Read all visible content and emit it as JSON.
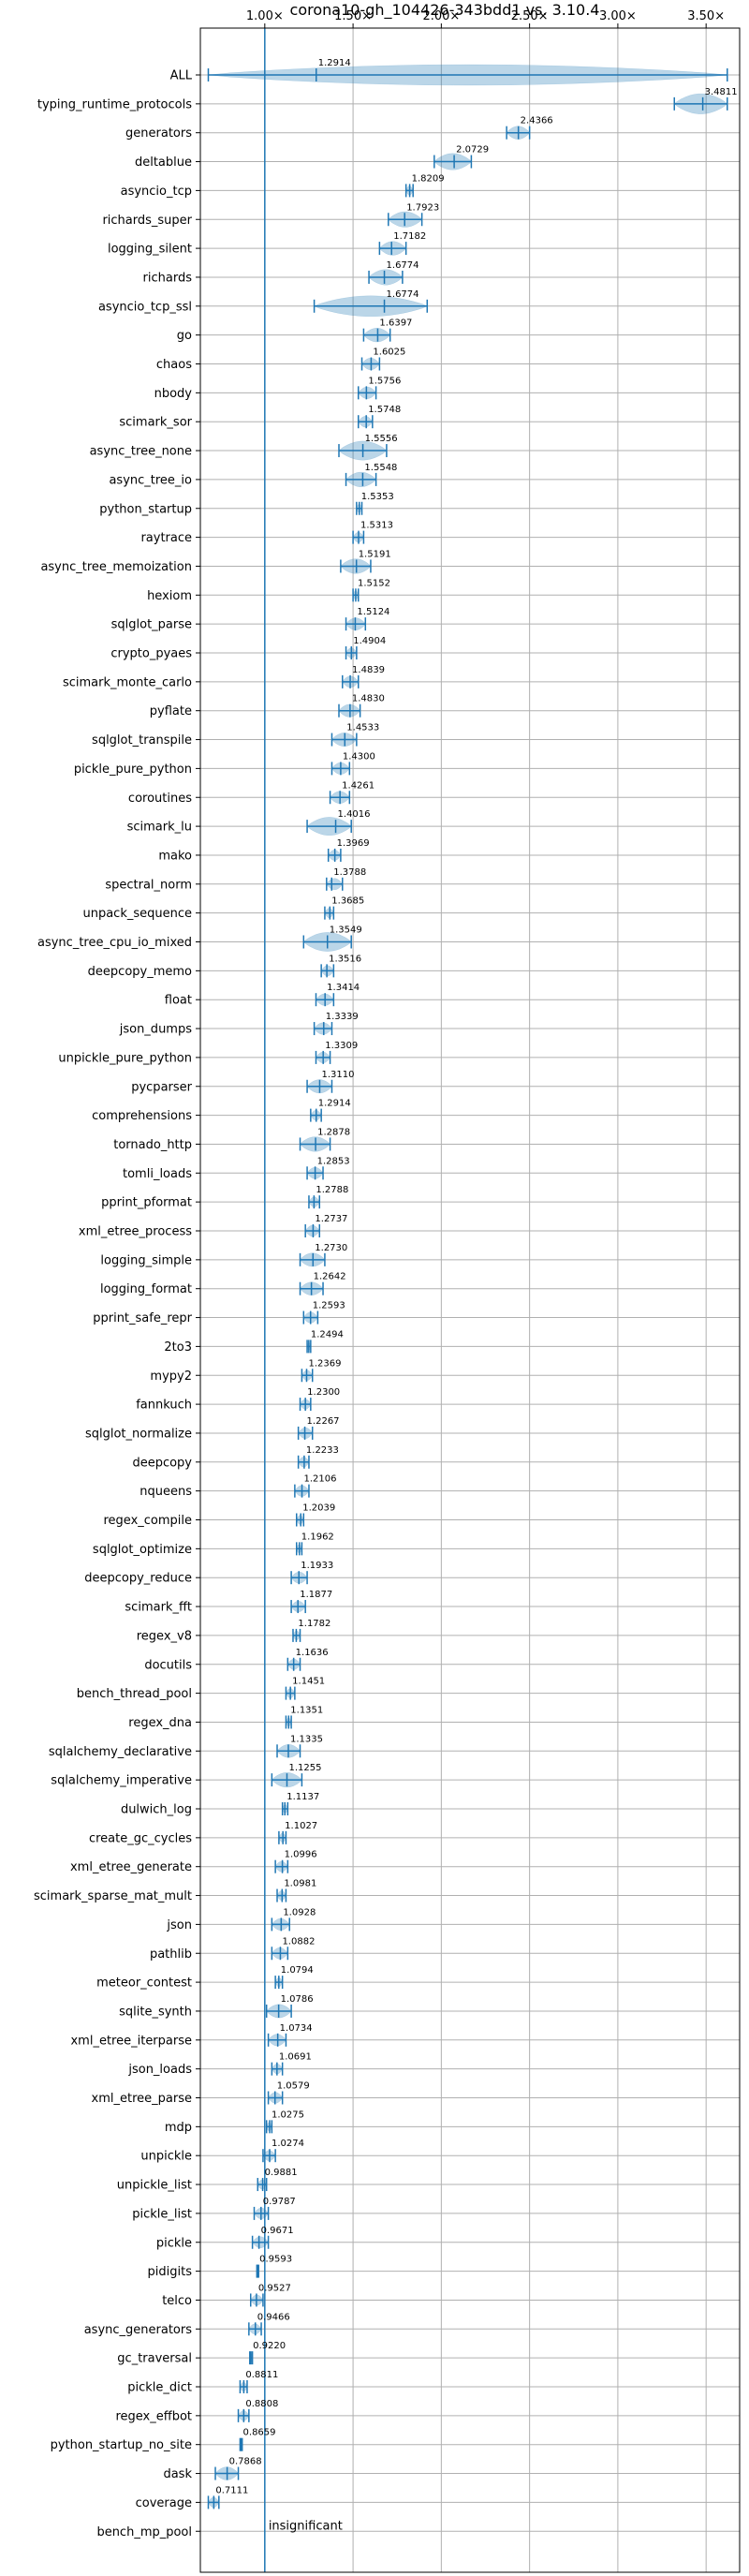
{
  "chart_data": {
    "type": "violin",
    "title": "corona10-gh_104426-343bdd1 vs. 3.10.4",
    "xlabel": "",
    "ylabel": "",
    "xlim": [
      0.635,
      3.69
    ],
    "x_ticks": [
      {
        "value": 1.0,
        "label": "1.00×"
      },
      {
        "value": 1.5,
        "label": "1.50×"
      },
      {
        "value": 2.0,
        "label": "2.00×"
      },
      {
        "value": 2.5,
        "label": "2.50×"
      },
      {
        "value": 3.0,
        "label": "3.00×"
      },
      {
        "value": 3.5,
        "label": "3.50×"
      }
    ],
    "x_ticks_position": "top",
    "grid": true,
    "baseline": 1.0,
    "colors": {
      "series": "#1f77b4",
      "grid": "#b0b0b0"
    },
    "benchmarks": [
      {
        "name": "ALL",
        "value": 1.2914,
        "label": "1.2914",
        "lo": 0.68,
        "hi": 3.62
      },
      {
        "name": "typing_runtime_protocols",
        "value": 3.4811,
        "label": "3.4811",
        "lo": 3.32,
        "hi": 3.62
      },
      {
        "name": "generators",
        "value": 2.4366,
        "label": "2.4366",
        "lo": 2.37,
        "hi": 2.5
      },
      {
        "name": "deltablue",
        "value": 2.0729,
        "label": "2.0729",
        "lo": 1.96,
        "hi": 2.17
      },
      {
        "name": "asyncio_tcp",
        "value": 1.8209,
        "label": "1.8209",
        "lo": 1.8,
        "hi": 1.84
      },
      {
        "name": "richards_super",
        "value": 1.7923,
        "label": "1.7923",
        "lo": 1.7,
        "hi": 1.89
      },
      {
        "name": "logging_silent",
        "value": 1.7182,
        "label": "1.7182",
        "lo": 1.65,
        "hi": 1.8
      },
      {
        "name": "richards",
        "value": 1.6774,
        "label": "1.6774",
        "lo": 1.59,
        "hi": 1.78
      },
      {
        "name": "asyncio_tcp_ssl",
        "value": 1.6774,
        "label": "1.6774",
        "lo": 1.28,
        "hi": 1.92
      },
      {
        "name": "go",
        "value": 1.6397,
        "label": "1.6397",
        "lo": 1.56,
        "hi": 1.71
      },
      {
        "name": "chaos",
        "value": 1.6025,
        "label": "1.6025",
        "lo": 1.55,
        "hi": 1.65
      },
      {
        "name": "nbody",
        "value": 1.5756,
        "label": "1.5756",
        "lo": 1.53,
        "hi": 1.63
      },
      {
        "name": "scimark_sor",
        "value": 1.5748,
        "label": "1.5748",
        "lo": 1.53,
        "hi": 1.61
      },
      {
        "name": "async_tree_none",
        "value": 1.5556,
        "label": "1.5556",
        "lo": 1.42,
        "hi": 1.69
      },
      {
        "name": "async_tree_io",
        "value": 1.5548,
        "label": "1.5548",
        "lo": 1.46,
        "hi": 1.63
      },
      {
        "name": "python_startup",
        "value": 1.5353,
        "label": "1.5353",
        "lo": 1.52,
        "hi": 1.55
      },
      {
        "name": "raytrace",
        "value": 1.5313,
        "label": "1.5313",
        "lo": 1.5,
        "hi": 1.56
      },
      {
        "name": "async_tree_memoization",
        "value": 1.5191,
        "label": "1.5191",
        "lo": 1.43,
        "hi": 1.6
      },
      {
        "name": "hexiom",
        "value": 1.5152,
        "label": "1.5152",
        "lo": 1.5,
        "hi": 1.53
      },
      {
        "name": "sqlglot_parse",
        "value": 1.5124,
        "label": "1.5124",
        "lo": 1.46,
        "hi": 1.57
      },
      {
        "name": "crypto_pyaes",
        "value": 1.4904,
        "label": "1.4904",
        "lo": 1.46,
        "hi": 1.52
      },
      {
        "name": "scimark_monte_carlo",
        "value": 1.4839,
        "label": "1.4839",
        "lo": 1.44,
        "hi": 1.53
      },
      {
        "name": "pyflate",
        "value": 1.483,
        "label": "1.4830",
        "lo": 1.42,
        "hi": 1.54
      },
      {
        "name": "sqlglot_transpile",
        "value": 1.4533,
        "label": "1.4533",
        "lo": 1.38,
        "hi": 1.52
      },
      {
        "name": "pickle_pure_python",
        "value": 1.43,
        "label": "1.4300",
        "lo": 1.38,
        "hi": 1.48
      },
      {
        "name": "coroutines",
        "value": 1.4261,
        "label": "1.4261",
        "lo": 1.37,
        "hi": 1.48
      },
      {
        "name": "scimark_lu",
        "value": 1.4016,
        "label": "1.4016",
        "lo": 1.24,
        "hi": 1.49
      },
      {
        "name": "mako",
        "value": 1.3969,
        "label": "1.3969",
        "lo": 1.36,
        "hi": 1.43
      },
      {
        "name": "spectral_norm",
        "value": 1.3788,
        "label": "1.3788",
        "lo": 1.35,
        "hi": 1.44
      },
      {
        "name": "unpack_sequence",
        "value": 1.3685,
        "label": "1.3685",
        "lo": 1.34,
        "hi": 1.39
      },
      {
        "name": "async_tree_cpu_io_mixed",
        "value": 1.3549,
        "label": "1.3549",
        "lo": 1.22,
        "hi": 1.49
      },
      {
        "name": "deepcopy_memo",
        "value": 1.3516,
        "label": "1.3516",
        "lo": 1.32,
        "hi": 1.39
      },
      {
        "name": "float",
        "value": 1.3414,
        "label": "1.3414",
        "lo": 1.29,
        "hi": 1.39
      },
      {
        "name": "json_dumps",
        "value": 1.3339,
        "label": "1.3339",
        "lo": 1.28,
        "hi": 1.38
      },
      {
        "name": "unpickle_pure_python",
        "value": 1.3309,
        "label": "1.3309",
        "lo": 1.29,
        "hi": 1.37
      },
      {
        "name": "pycparser",
        "value": 1.311,
        "label": "1.3110",
        "lo": 1.24,
        "hi": 1.38
      },
      {
        "name": "comprehensions",
        "value": 1.2914,
        "label": "1.2914",
        "lo": 1.26,
        "hi": 1.32
      },
      {
        "name": "tornado_http",
        "value": 1.2878,
        "label": "1.2878",
        "lo": 1.2,
        "hi": 1.37
      },
      {
        "name": "tomli_loads",
        "value": 1.2853,
        "label": "1.2853",
        "lo": 1.24,
        "hi": 1.33
      },
      {
        "name": "pprint_pformat",
        "value": 1.2788,
        "label": "1.2788",
        "lo": 1.25,
        "hi": 1.31
      },
      {
        "name": "xml_etree_process",
        "value": 1.2737,
        "label": "1.2737",
        "lo": 1.23,
        "hi": 1.31
      },
      {
        "name": "logging_simple",
        "value": 1.273,
        "label": "1.2730",
        "lo": 1.2,
        "hi": 1.34
      },
      {
        "name": "logging_format",
        "value": 1.2642,
        "label": "1.2642",
        "lo": 1.2,
        "hi": 1.33
      },
      {
        "name": "pprint_safe_repr",
        "value": 1.2593,
        "label": "1.2593",
        "lo": 1.22,
        "hi": 1.3
      },
      {
        "name": "2to3",
        "value": 1.2494,
        "label": "1.2494",
        "lo": 1.24,
        "hi": 1.26
      },
      {
        "name": "mypy2",
        "value": 1.2369,
        "label": "1.2369",
        "lo": 1.21,
        "hi": 1.27
      },
      {
        "name": "fannkuch",
        "value": 1.23,
        "label": "1.2300",
        "lo": 1.2,
        "hi": 1.26
      },
      {
        "name": "sqlglot_normalize",
        "value": 1.2267,
        "label": "1.2267",
        "lo": 1.19,
        "hi": 1.27
      },
      {
        "name": "deepcopy",
        "value": 1.2233,
        "label": "1.2233",
        "lo": 1.19,
        "hi": 1.25
      },
      {
        "name": "nqueens",
        "value": 1.2106,
        "label": "1.2106",
        "lo": 1.17,
        "hi": 1.25
      },
      {
        "name": "regex_compile",
        "value": 1.2039,
        "label": "1.2039",
        "lo": 1.18,
        "hi": 1.22
      },
      {
        "name": "sqlglot_optimize",
        "value": 1.1962,
        "label": "1.1962",
        "lo": 1.18,
        "hi": 1.21
      },
      {
        "name": "deepcopy_reduce",
        "value": 1.1933,
        "label": "1.1933",
        "lo": 1.15,
        "hi": 1.24
      },
      {
        "name": "scimark_fft",
        "value": 1.1877,
        "label": "1.1877",
        "lo": 1.15,
        "hi": 1.23
      },
      {
        "name": "regex_v8",
        "value": 1.1782,
        "label": "1.1782",
        "lo": 1.16,
        "hi": 1.2
      },
      {
        "name": "docutils",
        "value": 1.1636,
        "label": "1.1636",
        "lo": 1.13,
        "hi": 1.2
      },
      {
        "name": "bench_thread_pool",
        "value": 1.1451,
        "label": "1.1451",
        "lo": 1.12,
        "hi": 1.17
      },
      {
        "name": "regex_dna",
        "value": 1.1351,
        "label": "1.1351",
        "lo": 1.12,
        "hi": 1.15
      },
      {
        "name": "sqlalchemy_declarative",
        "value": 1.1335,
        "label": "1.1335",
        "lo": 1.07,
        "hi": 1.2
      },
      {
        "name": "sqlalchemy_imperative",
        "value": 1.1255,
        "label": "1.1255",
        "lo": 1.04,
        "hi": 1.21
      },
      {
        "name": "dulwich_log",
        "value": 1.1137,
        "label": "1.1137",
        "lo": 1.1,
        "hi": 1.13
      },
      {
        "name": "create_gc_cycles",
        "value": 1.1027,
        "label": "1.1027",
        "lo": 1.08,
        "hi": 1.12
      },
      {
        "name": "xml_etree_generate",
        "value": 1.0996,
        "label": "1.0996",
        "lo": 1.06,
        "hi": 1.13
      },
      {
        "name": "scimark_sparse_mat_mult",
        "value": 1.0981,
        "label": "1.0981",
        "lo": 1.07,
        "hi": 1.12
      },
      {
        "name": "json",
        "value": 1.0928,
        "label": "1.0928",
        "lo": 1.04,
        "hi": 1.14
      },
      {
        "name": "pathlib",
        "value": 1.0882,
        "label": "1.0882",
        "lo": 1.04,
        "hi": 1.13
      },
      {
        "name": "meteor_contest",
        "value": 1.0794,
        "label": "1.0794",
        "lo": 1.06,
        "hi": 1.1
      },
      {
        "name": "sqlite_synth",
        "value": 1.0786,
        "label": "1.0786",
        "lo": 1.01,
        "hi": 1.15
      },
      {
        "name": "xml_etree_iterparse",
        "value": 1.0734,
        "label": "1.0734",
        "lo": 1.02,
        "hi": 1.12
      },
      {
        "name": "json_loads",
        "value": 1.0691,
        "label": "1.0691",
        "lo": 1.04,
        "hi": 1.1
      },
      {
        "name": "xml_etree_parse",
        "value": 1.0579,
        "label": "1.0579",
        "lo": 1.02,
        "hi": 1.1
      },
      {
        "name": "mdp",
        "value": 1.0275,
        "label": "1.0275",
        "lo": 1.01,
        "hi": 1.04
      },
      {
        "name": "unpickle",
        "value": 1.0274,
        "label": "1.0274",
        "lo": 0.99,
        "hi": 1.06
      },
      {
        "name": "unpickle_list",
        "value": 0.9881,
        "label": "0.9881",
        "lo": 0.96,
        "hi": 1.01
      },
      {
        "name": "pickle_list",
        "value": 0.9787,
        "label": "0.9787",
        "lo": 0.94,
        "hi": 1.02
      },
      {
        "name": "pickle",
        "value": 0.9671,
        "label": "0.9671",
        "lo": 0.93,
        "hi": 1.02
      },
      {
        "name": "pidigits",
        "value": 0.9593,
        "label": "0.9593",
        "lo": 0.955,
        "hi": 0.965
      },
      {
        "name": "telco",
        "value": 0.9527,
        "label": "0.9527",
        "lo": 0.92,
        "hi": 0.99
      },
      {
        "name": "async_generators",
        "value": 0.9466,
        "label": "0.9466",
        "lo": 0.91,
        "hi": 0.98
      },
      {
        "name": "gc_traversal",
        "value": 0.922,
        "label": "0.9220",
        "lo": 0.915,
        "hi": 0.93
      },
      {
        "name": "pickle_dict",
        "value": 0.8811,
        "label": "0.8811",
        "lo": 0.86,
        "hi": 0.9
      },
      {
        "name": "regex_effbot",
        "value": 0.8808,
        "label": "0.8808",
        "lo": 0.85,
        "hi": 0.91
      },
      {
        "name": "python_startup_no_site",
        "value": 0.8659,
        "label": "0.8659",
        "lo": 0.86,
        "hi": 0.872
      },
      {
        "name": "dask",
        "value": 0.7868,
        "label": "0.7868",
        "lo": 0.72,
        "hi": 0.85
      },
      {
        "name": "coverage",
        "value": 0.7111,
        "label": "0.7111",
        "lo": 0.68,
        "hi": 0.74
      },
      {
        "name": "bench_mp_pool",
        "value": null,
        "label": "",
        "lo": null,
        "hi": null,
        "note": "insignificant"
      }
    ]
  }
}
